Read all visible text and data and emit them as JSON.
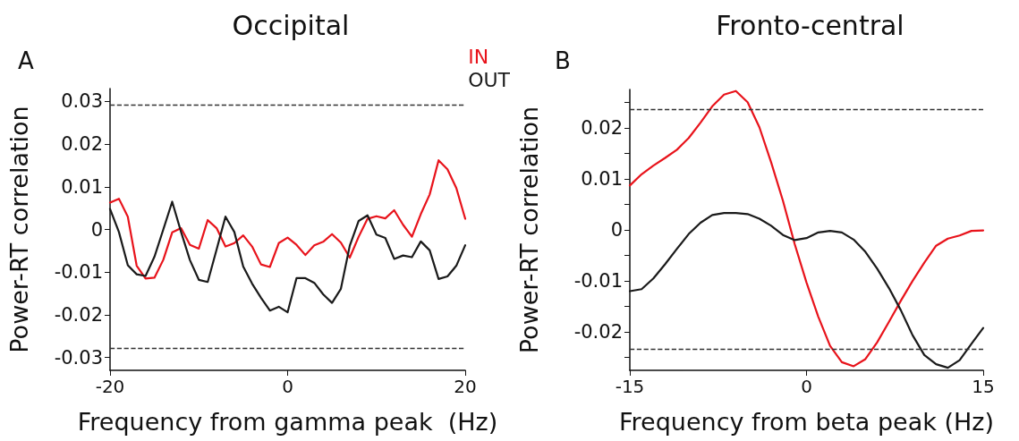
{
  "chart_data": [
    {
      "type": "line",
      "title": "Occipital",
      "xlabel": "Frequency from gamma peak  (Hz)",
      "ylabel": "Power-RT correlation",
      "annotations": [
        "A"
      ],
      "x": [
        -20,
        -19,
        -18,
        -17,
        -16,
        -15,
        -14,
        -13,
        -12,
        -11,
        -10,
        -9,
        -8,
        -7,
        -6,
        -5,
        -4,
        -3,
        -2,
        -1,
        0,
        1,
        2,
        3,
        4,
        5,
        6,
        7,
        8,
        9,
        10,
        11,
        12,
        13,
        14,
        15,
        16,
        17,
        18,
        19,
        20
      ],
      "series": [
        {
          "name": "IN",
          "color": "#e8131b",
          "values": [
            0.0063,
            0.0072,
            0.003,
            -0.0085,
            -0.0115,
            -0.0113,
            -0.0071,
            -0.0007,
            0.0003,
            -0.0036,
            -0.0045,
            0.0022,
            0.0003,
            -0.004,
            -0.0032,
            -0.0014,
            -0.004,
            -0.0082,
            -0.0088,
            -0.0032,
            -0.0019,
            -0.0036,
            -0.006,
            -0.0037,
            -0.0029,
            -0.0011,
            -0.0031,
            -0.0066,
            -0.0017,
            0.0025,
            0.0031,
            0.0026,
            0.0045,
            0.0011,
            -0.0017,
            0.0036,
            0.0082,
            0.0162,
            0.0141,
            0.0097,
            0.0025
          ]
        },
        {
          "name": "OUT",
          "color": "#1a1a1a",
          "values": [
            0.0048,
            -0.0006,
            -0.0084,
            -0.0105,
            -0.0109,
            -0.0064,
            0,
            0.0065,
            -0.0006,
            -0.0072,
            -0.0118,
            -0.0123,
            -0.0047,
            0.003,
            -0.0006,
            -0.0087,
            -0.0127,
            -0.016,
            -0.019,
            -0.0181,
            -0.0194,
            -0.0114,
            -0.0114,
            -0.0125,
            -0.0152,
            -0.0172,
            -0.0139,
            -0.0038,
            0.002,
            0.0033,
            -0.0012,
            -0.002,
            -0.0069,
            -0.0061,
            -0.0065,
            -0.0028,
            -0.0049,
            -0.0116,
            -0.011,
            -0.0085,
            -0.0037
          ]
        }
      ],
      "xlim": [
        -20,
        20
      ],
      "xticks": [
        -20,
        0,
        20
      ],
      "ylim": [
        -0.033,
        0.033
      ],
      "yticks": [
        -0.03,
        -0.02,
        -0.01,
        0,
        0.01,
        0.02,
        0.03
      ],
      "ref_lines": [
        {
          "axis": "y",
          "value": 0.0291,
          "color": "#333333",
          "line_style": "dashed"
        },
        {
          "axis": "y",
          "value": -0.0279,
          "color": "#333333",
          "line_style": "dashed"
        }
      ],
      "legend": "top right",
      "grid": false,
      "marker": "none",
      "line_style": "solid"
    },
    {
      "type": "line",
      "title": "Fronto-central",
      "xlabel": "Frequency from beta peak (Hz)",
      "ylabel": "Power-RT correlation",
      "annotations": [
        "B"
      ],
      "x": [
        -15,
        -14,
        -13,
        -12,
        -11,
        -10,
        -9,
        -8,
        -7,
        -6,
        -5,
        -4,
        -3,
        -2,
        -1,
        0,
        1,
        2,
        3,
        4,
        5,
        6,
        7,
        8,
        9,
        10,
        11,
        12,
        13,
        14,
        15
      ],
      "series": [
        {
          "color": "#e8131b",
          "values": [
            0.0087,
            0.0109,
            0.0126,
            0.0141,
            0.0157,
            0.018,
            0.021,
            0.0242,
            0.0265,
            0.0272,
            0.025,
            0.0201,
            0.0132,
            0.0057,
            -0.0028,
            -0.0103,
            -0.017,
            -0.0227,
            -0.0259,
            -0.0267,
            -0.0253,
            -0.022,
            -0.018,
            -0.0139,
            -0.01,
            -0.0064,
            -0.0031,
            -0.0017,
            -0.0011,
            -0.0002,
            -0.0001
          ]
        },
        {
          "color": "#1a1a1a",
          "values": [
            -0.012,
            -0.0116,
            -0.0095,
            -0.0067,
            -0.0037,
            -0.0008,
            0.0014,
            0.0029,
            0.0033,
            0.0033,
            0.0031,
            0.0022,
            0.0008,
            -0.001,
            -0.002,
            -0.0016,
            -0.0005,
            -0.0002,
            -0.0005,
            -0.0019,
            -0.0043,
            -0.0076,
            -0.0114,
            -0.0157,
            -0.0206,
            -0.0245,
            -0.0263,
            -0.027,
            -0.0255,
            -0.0223,
            -0.0192
          ]
        }
      ],
      "xlim": [
        -15,
        15
      ],
      "xticks": [
        -15,
        0,
        15
      ],
      "ylim": [
        -0.0275,
        0.0275
      ],
      "yticks": [
        {
          "value": -0.025,
          "label": null
        },
        -0.02,
        {
          "value": -0.015,
          "label": null
        },
        -0.01,
        {
          "value": -0.005,
          "label": null
        },
        0,
        {
          "value": 0.005,
          "label": null
        },
        0.01,
        {
          "value": 0.015,
          "label": null
        },
        0.02,
        {
          "value": 0.025,
          "label": null
        }
      ],
      "ref_lines": [
        {
          "axis": "y",
          "value": 0.0236,
          "color": "#333333",
          "line_style": "dashed"
        },
        {
          "axis": "y",
          "value": -0.0233,
          "color": "#333333",
          "line_style": "dashed"
        }
      ],
      "legend": false,
      "grid": false,
      "marker": "none",
      "line_style": "solid"
    }
  ]
}
